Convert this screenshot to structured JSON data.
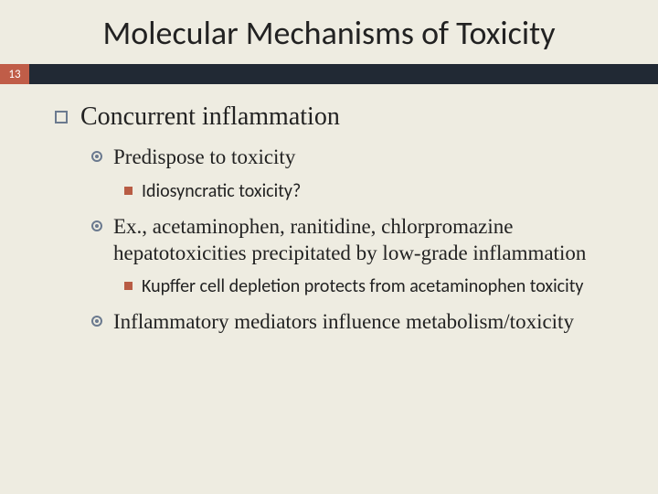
{
  "colors": {
    "background": "#eeece1",
    "title_text": "#222222",
    "bar_dark": "#212934",
    "badge_bg": "#c05d48",
    "badge_text": "#ffffff",
    "hollow_bullet_border": "#6b7a8f",
    "square_filled_bullet": "#b85c44",
    "body_text": "#222222"
  },
  "typography": {
    "title_font": "Calibri",
    "title_size_pt": 28,
    "body_font": "Georgia",
    "lvl1_size_pt": 21,
    "lvl2_size_pt": 17,
    "lvl3_font": "Calibri",
    "lvl3_size_pt": 15
  },
  "title": "Molecular Mechanisms of Toxicity",
  "page_number": "13",
  "bullets": {
    "lvl1": {
      "label": "Concurrent inflammation"
    },
    "lvl2": [
      {
        "label": "Predispose to toxicity"
      },
      {
        "label": "Ex., acetaminophen, ranitidine, chlorpromazine hepatotoxicities precipitated by low-grade inflammation"
      },
      {
        "label": "Inflammatory mediators influence metabolism/toxicity"
      }
    ],
    "lvl3_under0": [
      {
        "label": "Idiosyncratic toxicity?"
      }
    ],
    "lvl3_under1": [
      {
        "label": "Kupffer cell depletion protects from acetaminophen toxicity"
      }
    ]
  }
}
